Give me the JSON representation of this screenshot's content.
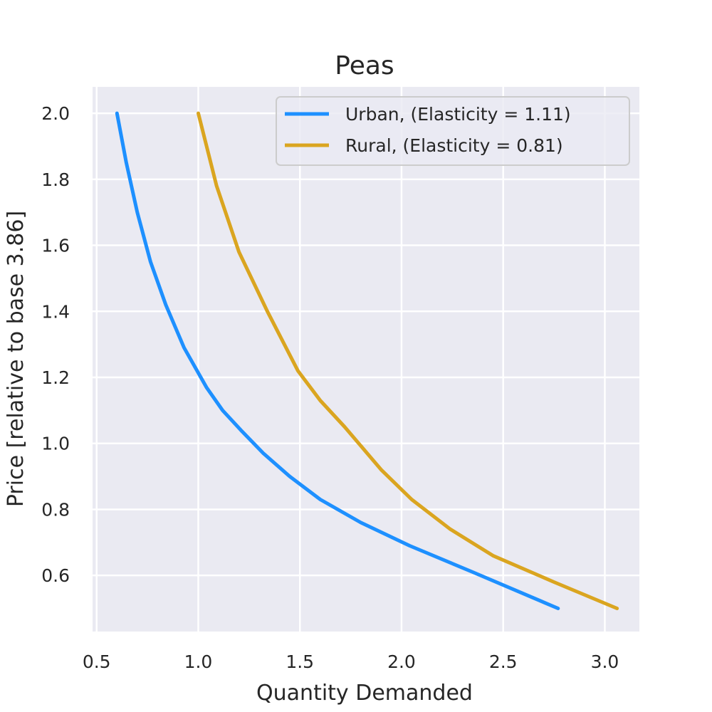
{
  "chart_data": {
    "type": "line",
    "title": "Peas",
    "xlabel": "Quantity Demanded",
    "ylabel": "Price [relative to base 3.86]",
    "xlim": [
      0.48,
      3.17
    ],
    "ylim": [
      0.43,
      2.08
    ],
    "xticks": [
      0.5,
      1.0,
      1.5,
      2.0,
      2.5,
      3.0
    ],
    "xtick_labels": [
      "0.5",
      "1.0",
      "1.5",
      "2.0",
      "2.5",
      "3.0"
    ],
    "yticks": [
      0.6,
      0.8,
      1.0,
      1.2,
      1.4,
      1.6,
      1.8,
      2.0
    ],
    "ytick_labels": [
      "0.6",
      "0.8",
      "1.0",
      "1.2",
      "1.4",
      "1.6",
      "1.8",
      "2.0"
    ],
    "grid": true,
    "legend_position": "top-right",
    "background": "#eaeaf2",
    "series": [
      {
        "name": "Urban, (Elasticity = 1.11)",
        "color": "#1e90ff",
        "x": [
          0.6,
          0.646,
          0.7,
          0.765,
          0.84,
          0.93,
          1.04,
          1.12,
          1.21,
          1.32,
          1.45,
          1.6,
          1.8,
          2.04,
          2.35,
          2.77
        ],
        "y": [
          2.0,
          1.85,
          1.7,
          1.55,
          1.42,
          1.29,
          1.17,
          1.1,
          1.04,
          0.97,
          0.9,
          0.83,
          0.76,
          0.69,
          0.61,
          0.5
        ]
      },
      {
        "name": "Rural, (Elasticity = 0.81)",
        "color": "#daa520",
        "x": [
          1.0,
          1.09,
          1.2,
          1.34,
          1.49,
          1.6,
          1.72,
          1.9,
          2.05,
          2.24,
          2.45,
          2.75,
          3.06
        ],
        "y": [
          2.0,
          1.78,
          1.58,
          1.4,
          1.22,
          1.13,
          1.05,
          0.92,
          0.83,
          0.74,
          0.66,
          0.58,
          0.5
        ]
      }
    ]
  }
}
